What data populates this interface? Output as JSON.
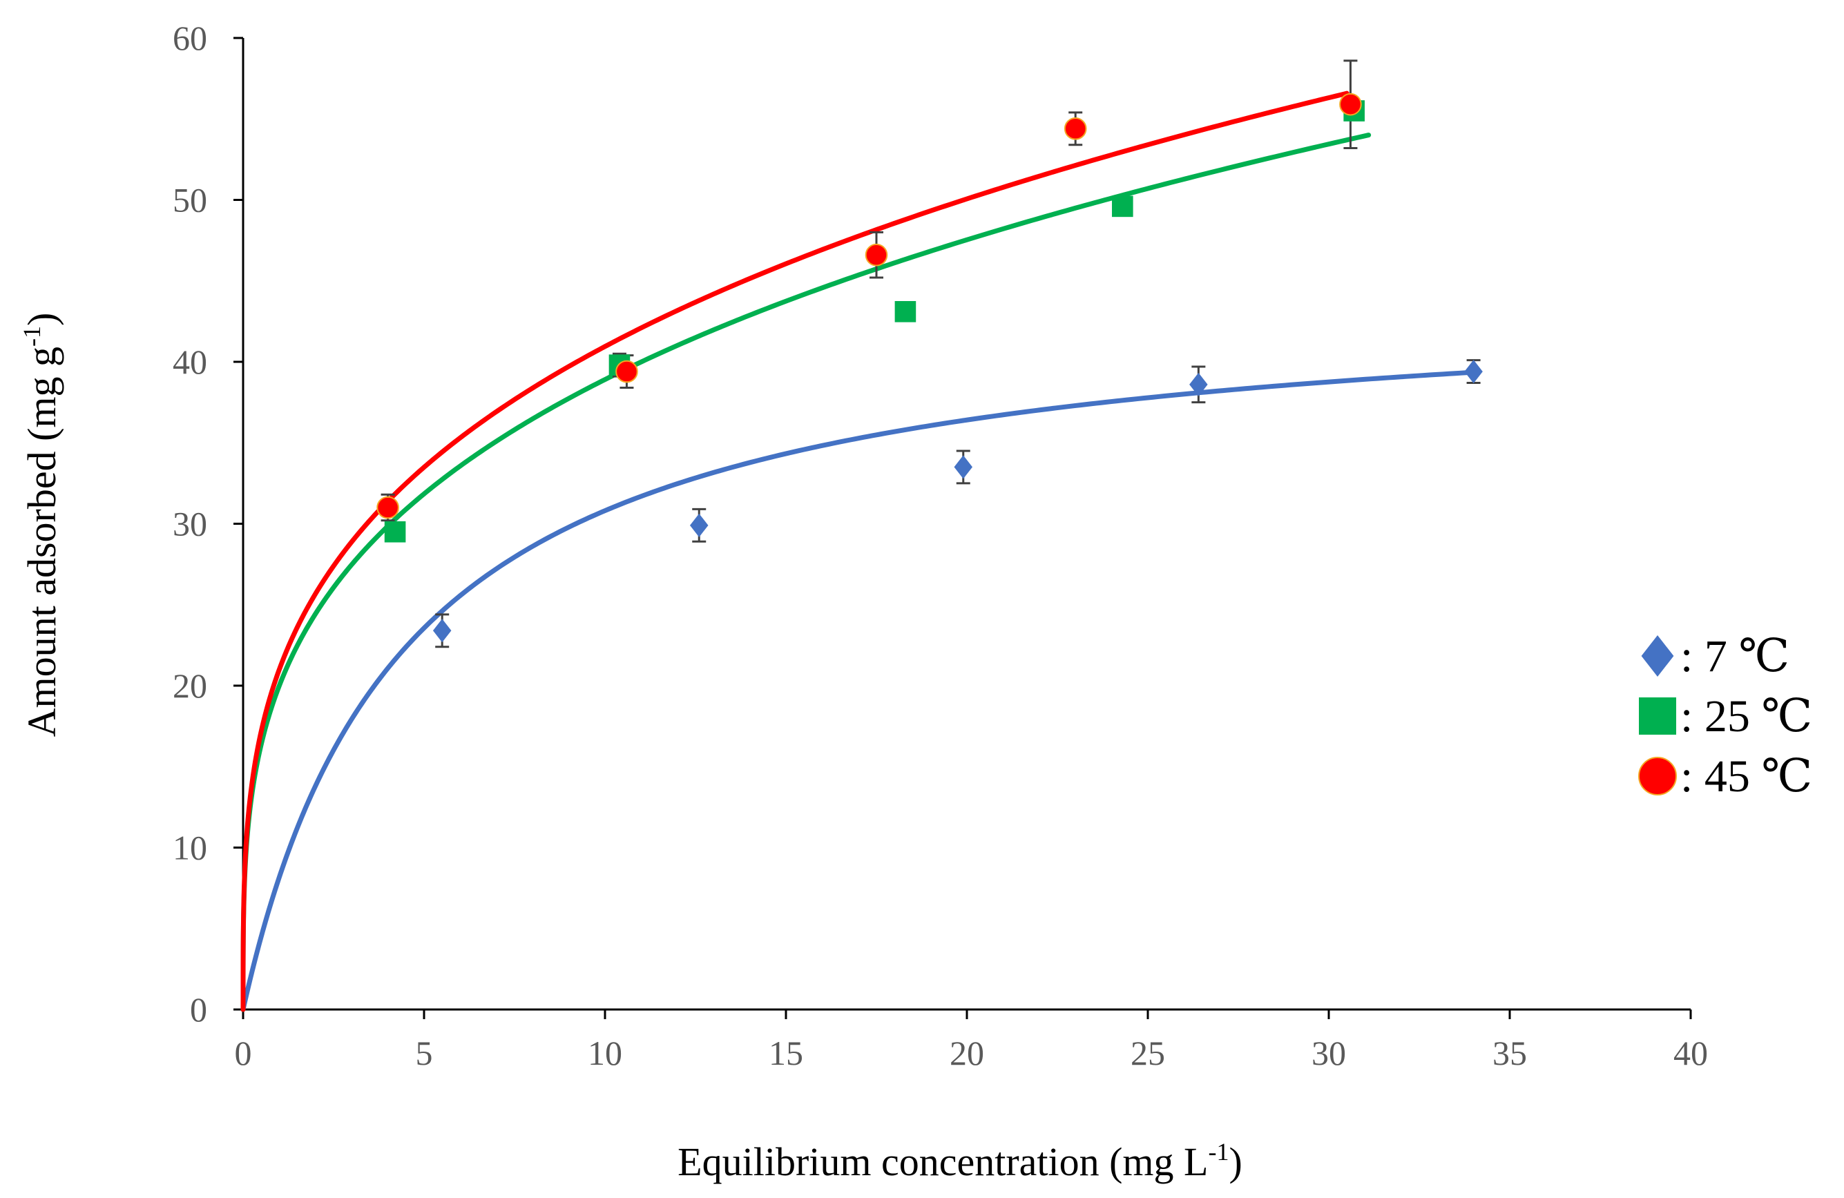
{
  "chart_data": {
    "type": "scatter",
    "title": "",
    "xlabel": "Equilibrium concentration (mg L",
    "xlabel_sup": "-1",
    "xlabel_end": ")",
    "ylabel": "Amount adsorbed (mg g",
    "ylabel_sup": "-1",
    "ylabel_end": ")",
    "xlim": [
      0,
      40
    ],
    "ylim": [
      0,
      60
    ],
    "xticks": [
      0,
      5,
      10,
      15,
      20,
      25,
      30,
      35,
      40
    ],
    "yticks": [
      0,
      10,
      20,
      30,
      40,
      50,
      60
    ],
    "grid": false,
    "legend_position": "right",
    "series": [
      {
        "name": ": 7 ℃",
        "marker": "diamond",
        "color": "#4472C4",
        "points": [
          {
            "x": 5.5,
            "y": 23.4,
            "err": 1.0
          },
          {
            "x": 12.6,
            "y": 29.9,
            "err": 1.0
          },
          {
            "x": 19.9,
            "y": 33.5,
            "err": 1.0
          },
          {
            "x": 26.4,
            "y": 38.6,
            "err": 1.1
          },
          {
            "x": 34.0,
            "y": 39.4,
            "err": 0.7
          }
        ],
        "fit": {
          "type": "langmuir",
          "qmax": 44.5,
          "K": 0.225,
          "x_end": 34.0
        }
      },
      {
        "name": ": 25 ℃",
        "marker": "square",
        "color": "#00B050",
        "points": [
          {
            "x": 4.2,
            "y": 29.5,
            "err": 0
          },
          {
            "x": 10.4,
            "y": 39.8,
            "err": 0.7
          },
          {
            "x": 18.3,
            "y": 43.1,
            "err": 0
          },
          {
            "x": 24.3,
            "y": 49.6,
            "err": 0
          },
          {
            "x": 30.7,
            "y": 55.5,
            "err": 0
          }
        ],
        "fit": {
          "type": "freundlich",
          "Kf": 20.0,
          "n": 0.289,
          "x_end": 31.1
        }
      },
      {
        "name": ": 45 ℃",
        "marker": "circle",
        "color": "#FF0000",
        "points": [
          {
            "x": 4.0,
            "y": 31.0,
            "err": 0.8
          },
          {
            "x": 10.6,
            "y": 39.4,
            "err": 1.0
          },
          {
            "x": 17.5,
            "y": 46.6,
            "err": 1.4
          },
          {
            "x": 23.0,
            "y": 54.4,
            "err": 1.0
          },
          {
            "x": 30.6,
            "y": 55.9,
            "err": 2.7
          }
        ],
        "fit": {
          "type": "freundlich",
          "Kf": 21.0,
          "n": 0.29,
          "x_end": 30.5
        }
      }
    ]
  }
}
